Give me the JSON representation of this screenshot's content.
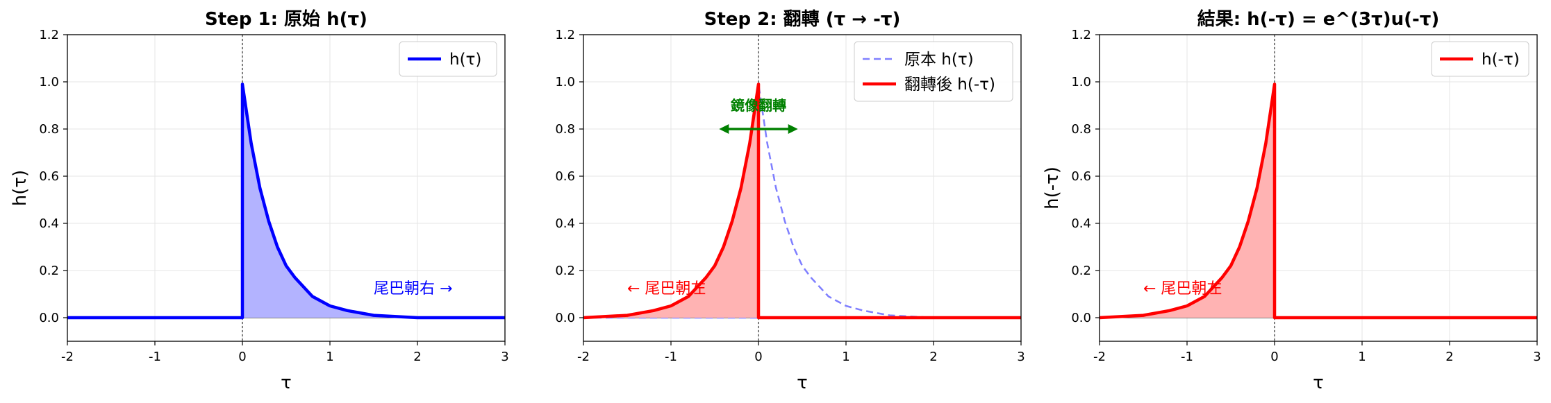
{
  "colors": {
    "blue": "#0000ff",
    "blue_fill": "#b3b3ff",
    "red": "#ff0000",
    "red_fill": "#ffb3b3",
    "dashed_blue": "#7f7fff",
    "green": "#008000",
    "grid": "#e6e6e6"
  },
  "chart_data": [
    {
      "type": "line",
      "title": "Step 1: 原始 h(τ)",
      "xlabel": "τ",
      "ylabel": "h(τ)",
      "xlim": [
        -2,
        3
      ],
      "ylim": [
        -0.1,
        1.2
      ],
      "xticks": [
        -2,
        -1,
        0,
        1,
        2,
        3
      ],
      "xtick_labels": [
        "-2",
        "-1",
        "0",
        "1",
        "2",
        "3"
      ],
      "yticks": [
        0.0,
        0.2,
        0.4,
        0.6,
        0.8,
        1.0,
        1.2
      ],
      "ytick_labels": [
        "0.0",
        "0.2",
        "0.4",
        "0.6",
        "0.8",
        "1.0",
        "1.2"
      ],
      "grid": true,
      "legend_position": "top-right",
      "series": [
        {
          "name": "h(τ)",
          "function": "exp(-3τ)·u(τ)",
          "color": "blue",
          "style": "solid",
          "fill": true,
          "x": [
            -2,
            0,
            0,
            0.1,
            0.2,
            0.3,
            0.4,
            0.5,
            0.6,
            0.8,
            1.0,
            1.2,
            1.5,
            2.0,
            2.5,
            3.0
          ],
          "y": [
            0,
            0,
            0.99,
            0.74,
            0.55,
            0.41,
            0.3,
            0.22,
            0.17,
            0.09,
            0.05,
            0.03,
            0.01,
            0.0,
            0.0,
            0.0
          ]
        }
      ],
      "annotations": [
        {
          "text": "尾巴朝右 →",
          "x": 1.5,
          "y": 0.12,
          "color": "blue"
        }
      ],
      "vline": 0
    },
    {
      "type": "line",
      "title": "Step 2: 翻轉 (τ → -τ)",
      "xlabel": "τ",
      "ylabel": "",
      "xlim": [
        -2,
        3
      ],
      "ylim": [
        -0.1,
        1.2
      ],
      "xticks": [
        -2,
        -1,
        0,
        1,
        2,
        3
      ],
      "xtick_labels": [
        "-2",
        "-1",
        "0",
        "1",
        "2",
        "3"
      ],
      "yticks": [
        0.0,
        0.2,
        0.4,
        0.6,
        0.8,
        1.0,
        1.2
      ],
      "ytick_labels": [
        "0.0",
        "0.2",
        "0.4",
        "0.6",
        "0.8",
        "1.0",
        "1.2"
      ],
      "grid": true,
      "legend_position": "top-right",
      "series": [
        {
          "name": "原本 h(τ)",
          "function": "exp(-3τ)·u(τ)",
          "color": "dashed_blue",
          "style": "dashed",
          "fill": false,
          "x": [
            -2,
            0,
            0,
            0.1,
            0.2,
            0.3,
            0.4,
            0.5,
            0.6,
            0.8,
            1.0,
            1.2,
            1.5,
            2.0,
            2.5,
            3.0
          ],
          "y": [
            0,
            0,
            0.99,
            0.74,
            0.55,
            0.41,
            0.3,
            0.22,
            0.17,
            0.09,
            0.05,
            0.03,
            0.01,
            0.0,
            0.0,
            0.0
          ]
        },
        {
          "name": "翻轉後 h(-τ)",
          "function": "exp(3τ)·u(-τ)",
          "color": "red",
          "style": "solid",
          "fill": true,
          "x": [
            -2,
            -1.5,
            -1.2,
            -1.0,
            -0.8,
            -0.6,
            -0.5,
            -0.4,
            -0.3,
            -0.2,
            -0.1,
            0,
            0,
            3
          ],
          "y": [
            0.0,
            0.01,
            0.03,
            0.05,
            0.09,
            0.17,
            0.22,
            0.3,
            0.41,
            0.55,
            0.74,
            0.99,
            0,
            0
          ]
        }
      ],
      "annotations": [
        {
          "text": "← 尾巴朝左",
          "x": -1.5,
          "y": 0.12,
          "color": "red"
        },
        {
          "text": "鏡像翻轉",
          "x": 0,
          "y": 0.9,
          "color": "green",
          "bold": true,
          "arrow_from": -0.45,
          "arrow_to": 0.45,
          "arrow_y": 0.8
        }
      ],
      "vline": 0
    },
    {
      "type": "line",
      "title": "結果: h(-τ) = e^(3τ)u(-τ)",
      "xlabel": "τ",
      "ylabel": "h(-τ)",
      "xlim": [
        -2,
        3
      ],
      "ylim": [
        -0.1,
        1.2
      ],
      "xticks": [
        -2,
        -1,
        0,
        1,
        2,
        3
      ],
      "xtick_labels": [
        "-2",
        "-1",
        "0",
        "1",
        "2",
        "3"
      ],
      "yticks": [
        0.0,
        0.2,
        0.4,
        0.6,
        0.8,
        1.0,
        1.2
      ],
      "ytick_labels": [
        "0.0",
        "0.2",
        "0.4",
        "0.6",
        "0.8",
        "1.0",
        "1.2"
      ],
      "grid": true,
      "legend_position": "top-right",
      "series": [
        {
          "name": "h(-τ)",
          "function": "exp(3τ)·u(-τ)",
          "color": "red",
          "style": "solid",
          "fill": true,
          "x": [
            -2,
            -1.5,
            -1.2,
            -1.0,
            -0.8,
            -0.6,
            -0.5,
            -0.4,
            -0.3,
            -0.2,
            -0.1,
            0,
            0,
            3
          ],
          "y": [
            0.0,
            0.01,
            0.03,
            0.05,
            0.09,
            0.17,
            0.22,
            0.3,
            0.41,
            0.55,
            0.74,
            0.99,
            0,
            0
          ]
        }
      ],
      "annotations": [
        {
          "text": "← 尾巴朝左",
          "x": -1.5,
          "y": 0.12,
          "color": "red"
        }
      ],
      "vline": 0
    }
  ]
}
